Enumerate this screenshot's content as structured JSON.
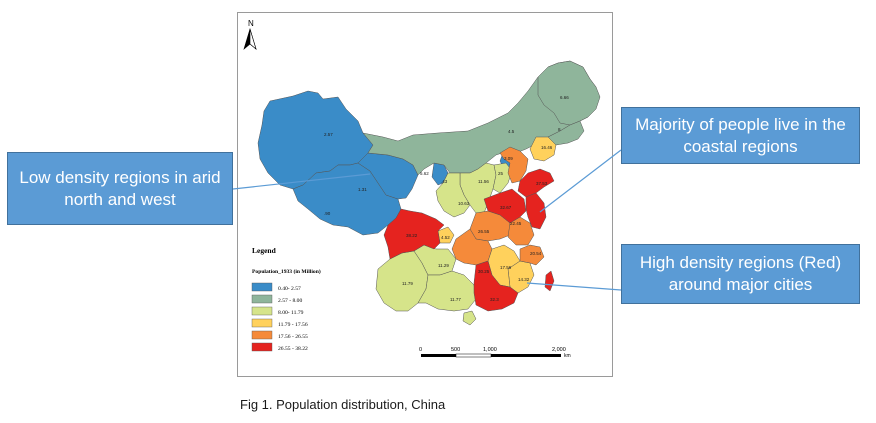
{
  "north_label": "N",
  "legend": {
    "title": "Legend",
    "subtitle": "Population_1933 (in Million)",
    "classes": [
      {
        "label": "0.40- 2.57",
        "color": "#3a8cc8"
      },
      {
        "label": "2.57 - 8.00",
        "color": "#8fb59b"
      },
      {
        "label": "8.00- 11.79",
        "color": "#d6e48a"
      },
      {
        "label": "11.79 - 17.56",
        "color": "#ffd15c"
      },
      {
        "label": "17.56 - 26.55",
        "color": "#f58a3a"
      },
      {
        "label": "26.55 - 38.22",
        "color": "#e5231f"
      }
    ]
  },
  "scale_bar": {
    "ticks": [
      "0",
      "500",
      "1,000",
      "2,000"
    ],
    "unit": "km"
  },
  "region_labels": [
    "2.57",
    "1.31",
    ".90",
    "5.62",
    "4.5",
    "6.66",
    "8",
    "16.46",
    "25",
    "11.56",
    "37.53",
    "10.63",
    "32.67",
    "38.22",
    "26.55",
    "22.45",
    "4.52",
    "20.54",
    "11.79",
    "11.29",
    "30.25",
    "17.56",
    "14.32",
    "11.77",
    "32.3",
    "3.09",
    ".43"
  ],
  "callouts": {
    "low": "Low density regions in arid north and west",
    "coastal": "Majority of people live in the coastal regions",
    "high": "High density regions (Red) around major cities"
  },
  "caption": "Fig 1. Population distribution, China"
}
